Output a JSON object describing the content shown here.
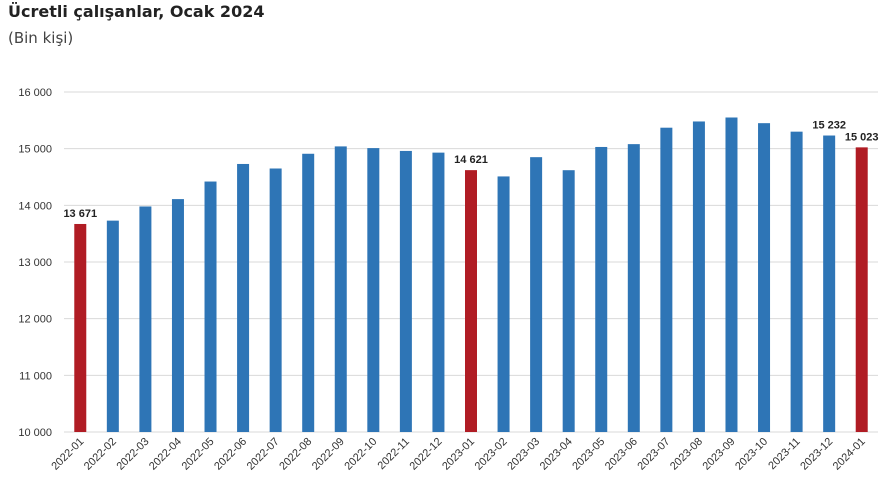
{
  "chart_data": {
    "type": "bar",
    "title": "Ücretli çalışanlar, Ocak 2024",
    "subtitle": "(Bin kişi)",
    "categories": [
      "2022-01",
      "2022-02",
      "2022-03",
      "2022-04",
      "2022-05",
      "2022-06",
      "2022-07",
      "2022-08",
      "2022-09",
      "2022-10",
      "2022-11",
      "2022-12",
      "2023-01",
      "2023-02",
      "2023-03",
      "2023-04",
      "2023-05",
      "2023-06",
      "2023-07",
      "2023-08",
      "2023-09",
      "2023-10",
      "2023-11",
      "2023-12",
      "2024-01"
    ],
    "values": [
      13671,
      13730,
      13980,
      14110,
      14420,
      14730,
      14650,
      14910,
      15040,
      15010,
      14960,
      14930,
      14621,
      14510,
      14850,
      14620,
      15030,
      15080,
      15370,
      15480,
      15550,
      15450,
      15300,
      15232,
      15023
    ],
    "highlight_indices": [
      0,
      12,
      24
    ],
    "data_labels": [
      {
        "index": 0,
        "text": "13 671"
      },
      {
        "index": 12,
        "text": "14 621"
      },
      {
        "index": 23,
        "text": "15 232"
      },
      {
        "index": 24,
        "text": "15 023"
      }
    ],
    "ylim": [
      10000,
      16000
    ],
    "yticks": [
      "10 000",
      "11 000",
      "12 000",
      "13 000",
      "14 000",
      "15 000",
      "16 000"
    ],
    "ytick_values": [
      10000,
      11000,
      12000,
      13000,
      14000,
      15000,
      16000
    ],
    "grid": true,
    "colors": {
      "bar": "#2e75b6",
      "highlight": "#b01c24",
      "grid": "#d9d9d9"
    }
  }
}
